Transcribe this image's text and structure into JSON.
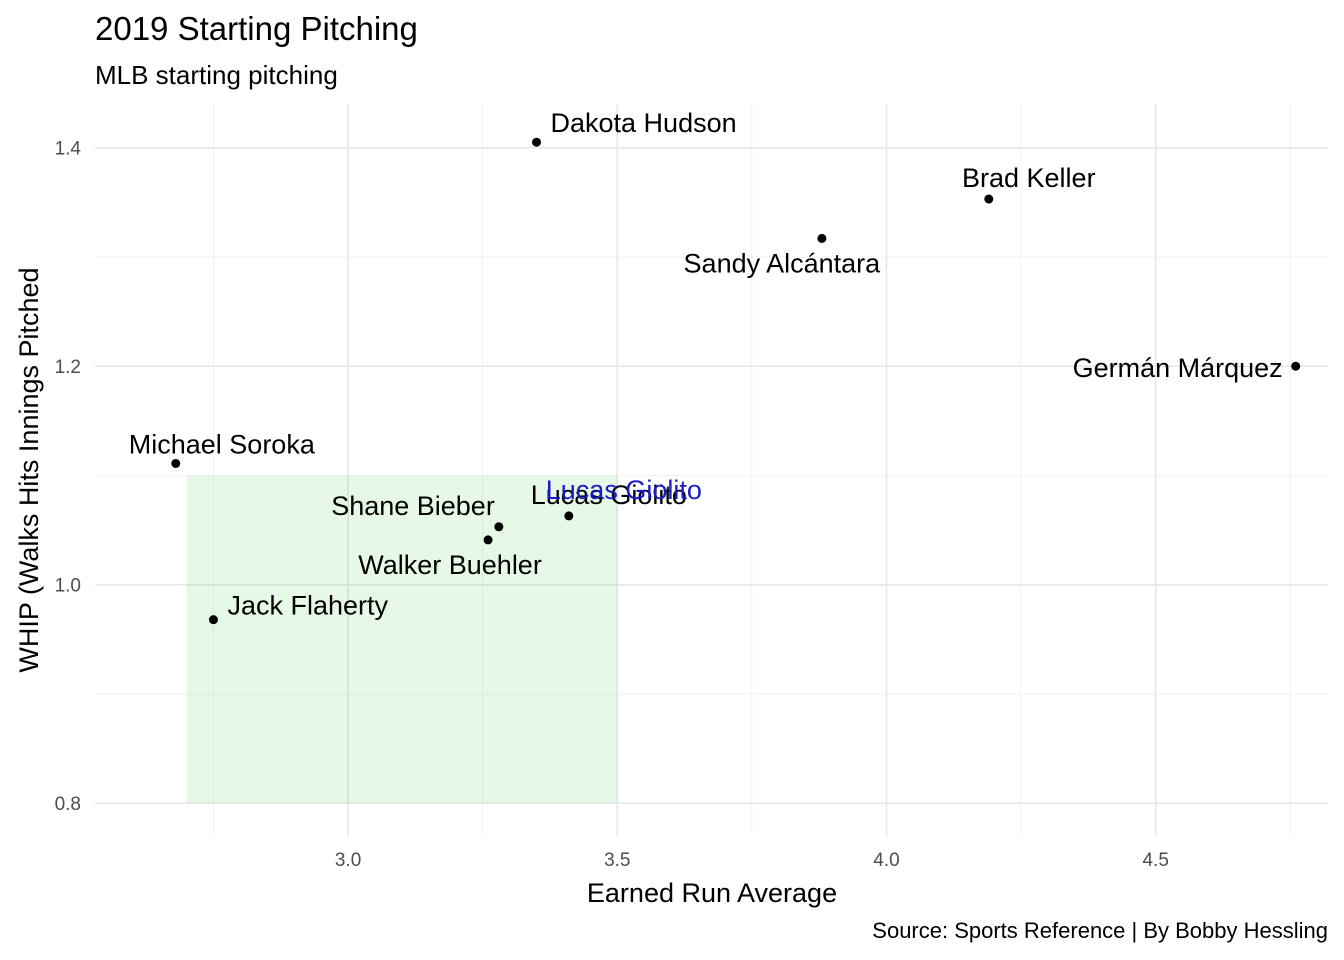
{
  "title": "2019 Starting Pitching",
  "subtitle": "MLB starting pitching",
  "caption": "Source: Sports Reference | By Bobby Hessling",
  "chart_data": {
    "type": "scatter",
    "xlabel": "Earned Run Average",
    "ylabel": "WHIP (Walks Hits Innings Pitched",
    "xlim": [
      2.53,
      4.82
    ],
    "ylim": [
      0.77,
      1.44
    ],
    "xticks": [
      3.0,
      3.5,
      4.0,
      4.5
    ],
    "xtick_labels": [
      "3.0",
      "3.5",
      "4.0",
      "4.5"
    ],
    "yticks": [
      0.8,
      1.0,
      1.2,
      1.4
    ],
    "ytick_labels": [
      "0.8",
      "1.0",
      "1.2",
      "1.4"
    ],
    "grid": true,
    "highlight_region": {
      "x": [
        2.7,
        3.5
      ],
      "y": [
        0.8,
        1.1
      ],
      "color": "#e6f9e6"
    },
    "point_color": "#000000",
    "highlight_label_color": "#1a1acc",
    "points": [
      {
        "name": "Dakota Hudson",
        "x": 3.35,
        "y": 1.405,
        "anchor": "start",
        "dx": 14,
        "dy": -10
      },
      {
        "name": "Brad Keller",
        "x": 4.19,
        "y": 1.353,
        "anchor": "middle",
        "dx": 40,
        "dy": -12
      },
      {
        "name": "Sandy Alcántara",
        "x": 3.88,
        "y": 1.317,
        "anchor": "middle",
        "dx": -40,
        "dy": 34
      },
      {
        "name": "Germán Márquez",
        "x": 4.76,
        "y": 1.2,
        "anchor": "end",
        "dx": -13,
        "dy": 11
      },
      {
        "name": "Michael Soroka",
        "x": 2.68,
        "y": 1.111,
        "anchor": "start",
        "dx": -47,
        "dy": -10
      },
      {
        "name": "Lucas Giolito",
        "x": 3.41,
        "y": 1.063,
        "anchor": "middle",
        "dx": 40,
        "dy": -12
      },
      {
        "name": "Shane Bieber",
        "x": 3.28,
        "y": 1.053,
        "anchor": "end",
        "dx": -4,
        "dy": -12
      },
      {
        "name": "Walker Buehler",
        "x": 3.26,
        "y": 1.041,
        "anchor": "middle",
        "dx": -38,
        "dy": 34
      },
      {
        "name": "Jack Flaherty",
        "x": 2.75,
        "y": 0.968,
        "anchor": "start",
        "dx": 14,
        "dy": -5
      }
    ],
    "highlight_label": {
      "name": "Lucas Giolito",
      "x": 3.41,
      "y": 1.063,
      "dx": 55,
      "dy": -17
    }
  }
}
